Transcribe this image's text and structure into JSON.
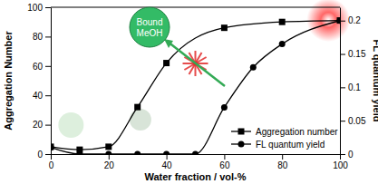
{
  "chart_data": {
    "type": "line",
    "x_label": "Water fraction / vol-%",
    "y_label": "Aggregation Number",
    "y2_label": "FL quantum yield",
    "annotation": "Bound MeOH",
    "xlim": [
      0,
      100
    ],
    "xticks": [
      0,
      20,
      40,
      60,
      80,
      100
    ],
    "ylim": [
      0,
      100
    ],
    "yticks": [
      0,
      20,
      40,
      60,
      80,
      100
    ],
    "y2lim": [
      0,
      0.22
    ],
    "y2ticks": [
      0,
      0.05,
      0.1,
      0.15,
      0.2
    ],
    "legend": "lower right",
    "series": [
      {
        "name": "Aggregation number",
        "color": "#000000",
        "marker": "square",
        "x": [
          0,
          10,
          20,
          30,
          40,
          60,
          80,
          100
        ],
        "values": [
          5,
          3,
          5,
          32,
          62,
          86,
          90,
          91
        ]
      },
      {
        "name": "FL quantum yield",
        "color": "#000000",
        "marker": "circle",
        "axis": "y2",
        "x": [
          0,
          10,
          20,
          30,
          40,
          50,
          60,
          70,
          80,
          100
        ],
        "values": [
          0.01,
          0,
          0,
          0,
          0,
          0,
          0.07,
          0.13,
          0.165,
          0.2
        ]
      }
    ]
  }
}
